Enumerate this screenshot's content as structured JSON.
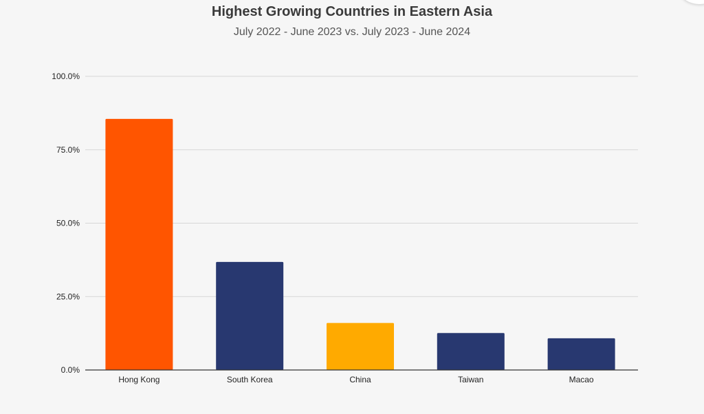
{
  "chart_data": {
    "type": "bar",
    "title": "Highest Growing Countries in Eastern Asia",
    "subtitle": "July 2022 - June 2023 vs. July 2023 - June 2024",
    "xlabel": "",
    "ylabel": "",
    "categories": [
      "Hong Kong",
      "South Korea",
      "China",
      "Taiwan",
      "Macao"
    ],
    "values": [
      85.5,
      36.8,
      16.0,
      12.6,
      10.8
    ],
    "bar_colors": [
      "#ff5500",
      "#283870",
      "#ffaa00",
      "#283870",
      "#283870"
    ],
    "ylim": [
      0,
      100
    ],
    "yticks": [
      0,
      25,
      50,
      75,
      100
    ],
    "ytick_labels": [
      "0.0%",
      "25.0%",
      "50.0%",
      "75.0%",
      "100.0%"
    ],
    "grid": true,
    "legend": "none"
  }
}
